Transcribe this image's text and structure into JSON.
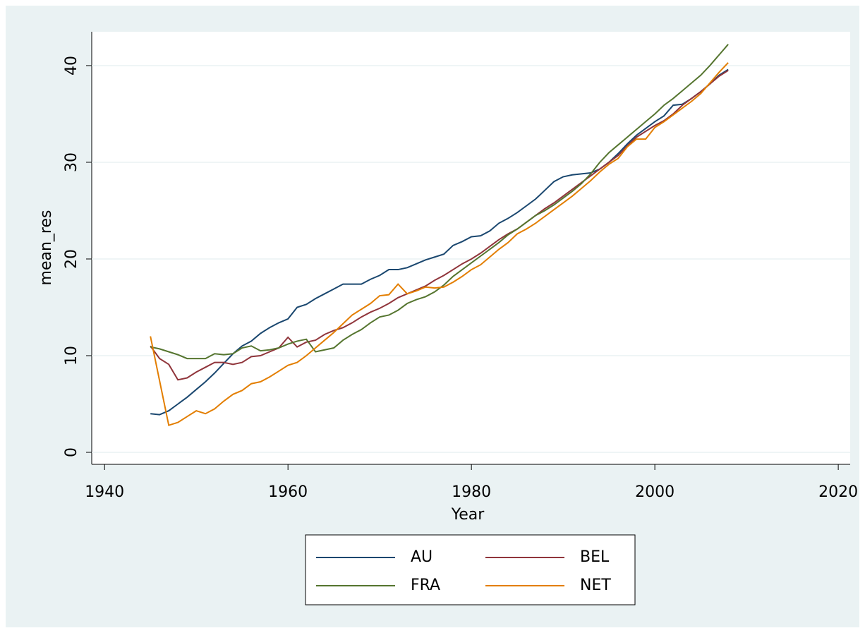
{
  "chart_data": {
    "type": "line",
    "x_label": "Year",
    "y_label": "mean_res",
    "x": [
      1945,
      1946,
      1947,
      1948,
      1949,
      1950,
      1951,
      1952,
      1953,
      1954,
      1955,
      1956,
      1957,
      1958,
      1959,
      1960,
      1961,
      1962,
      1963,
      1964,
      1965,
      1966,
      1967,
      1968,
      1969,
      1970,
      1971,
      1972,
      1973,
      1974,
      1975,
      1976,
      1977,
      1978,
      1979,
      1980,
      1981,
      1982,
      1983,
      1984,
      1985,
      1986,
      1987,
      1988,
      1989,
      1990,
      1991,
      1992,
      1993,
      1994,
      1995,
      1996,
      1997,
      1998,
      1999,
      2000,
      2001,
      2002,
      2003,
      2004,
      2005,
      2006,
      2007,
      2008
    ],
    "series": [
      {
        "name": "AU",
        "color": "#1a476f",
        "values": [
          4.0,
          3.9,
          4.3,
          5.0,
          5.7,
          6.5,
          7.3,
          8.2,
          9.2,
          10.2,
          11.0,
          11.5,
          12.3,
          12.9,
          13.4,
          13.8,
          15.0,
          15.3,
          15.9,
          16.4,
          16.9,
          17.4,
          17.4,
          17.4,
          17.9,
          18.3,
          18.9,
          18.9,
          19.1,
          19.5,
          19.9,
          20.2,
          20.5,
          21.4,
          21.8,
          22.3,
          22.4,
          22.9,
          23.7,
          24.2,
          24.8,
          25.5,
          26.2,
          27.1,
          28.0,
          28.5,
          28.7,
          28.8,
          28.9,
          29.3,
          30.0,
          30.9,
          31.9,
          32.8,
          33.5,
          34.2,
          34.8,
          35.9,
          36.0,
          36.6,
          37.3,
          38.1,
          39.0,
          39.6
        ]
      },
      {
        "name": "BEL",
        "color": "#90353b",
        "values": [
          11.0,
          9.7,
          9.1,
          7.5,
          7.7,
          8.3,
          8.8,
          9.3,
          9.3,
          9.1,
          9.3,
          9.9,
          10.0,
          10.4,
          10.8,
          11.9,
          10.9,
          11.4,
          11.6,
          12.2,
          12.6,
          12.9,
          13.4,
          14.0,
          14.5,
          14.9,
          15.4,
          16.0,
          16.4,
          16.8,
          17.2,
          17.8,
          18.3,
          18.9,
          19.5,
          20.0,
          20.6,
          21.3,
          22.0,
          22.6,
          23.1,
          23.8,
          24.5,
          25.2,
          25.8,
          26.5,
          27.2,
          27.9,
          28.6,
          29.3,
          30.0,
          30.7,
          31.7,
          32.6,
          33.2,
          33.8,
          34.3,
          35.0,
          35.9,
          36.6,
          37.3,
          38.1,
          38.9,
          39.5
        ]
      },
      {
        "name": "FRA",
        "color": "#55752f",
        "values": [
          10.9,
          10.7,
          10.4,
          10.1,
          9.7,
          9.7,
          9.7,
          10.2,
          10.1,
          10.2,
          10.8,
          11.0,
          10.5,
          10.6,
          10.8,
          11.2,
          11.5,
          11.7,
          10.4,
          10.6,
          10.8,
          11.6,
          12.2,
          12.7,
          13.4,
          14.0,
          14.2,
          14.7,
          15.4,
          15.8,
          16.1,
          16.6,
          17.3,
          18.2,
          18.9,
          19.6,
          20.3,
          21.0,
          21.7,
          22.5,
          23.1,
          23.8,
          24.5,
          25.0,
          25.6,
          26.3,
          27.0,
          27.8,
          28.8,
          30.0,
          31.0,
          31.8,
          32.6,
          33.4,
          34.2,
          35.0,
          35.9,
          36.6,
          37.4,
          38.2,
          39.0,
          40.0,
          41.1,
          42.2
        ]
      },
      {
        "name": "NET",
        "color": "#e37e00",
        "values": [
          12.0,
          7.4,
          2.8,
          3.1,
          3.7,
          4.3,
          4.0,
          4.5,
          5.3,
          6.0,
          6.4,
          7.1,
          7.3,
          7.8,
          8.4,
          9.0,
          9.3,
          10.0,
          10.8,
          11.6,
          12.4,
          13.3,
          14.2,
          14.8,
          15.4,
          16.2,
          16.3,
          17.4,
          16.4,
          16.7,
          17.1,
          17.0,
          17.1,
          17.6,
          18.2,
          18.9,
          19.4,
          20.2,
          21.0,
          21.7,
          22.6,
          23.1,
          23.7,
          24.4,
          25.1,
          25.8,
          26.5,
          27.3,
          28.1,
          29.0,
          29.8,
          30.4,
          31.6,
          32.4,
          32.4,
          33.6,
          34.2,
          34.9,
          35.6,
          36.3,
          37.1,
          38.2,
          39.3,
          40.3
        ]
      }
    ],
    "xlim": [
      1938.6,
      2021.3
    ],
    "ylim": [
      -1.24,
      43.5
    ],
    "xticks": [
      1940,
      1960,
      1980,
      2000,
      2020
    ],
    "yticks": [
      0,
      10,
      20,
      30,
      40
    ],
    "grid": true,
    "legend": "bottom"
  }
}
